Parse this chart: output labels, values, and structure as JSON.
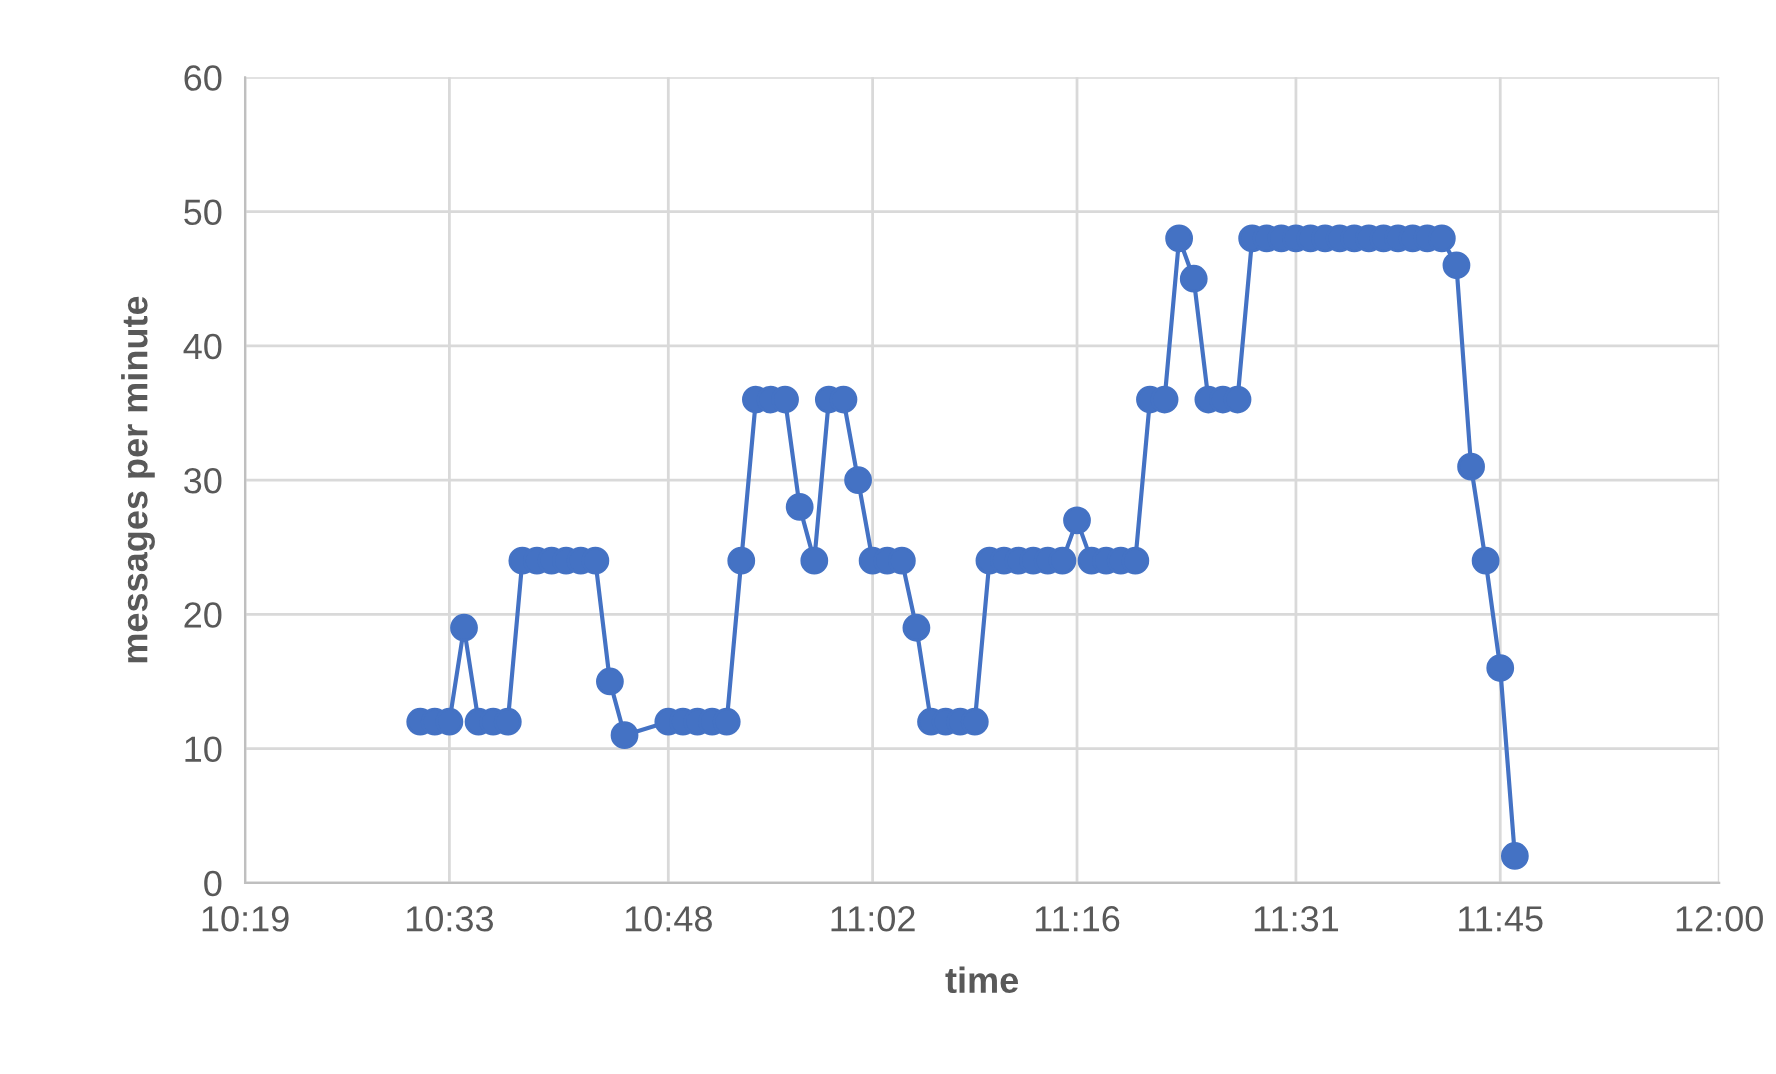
{
  "chart_data": {
    "type": "line",
    "xlabel": "time",
    "ylabel": "messages per minute",
    "xlim": [
      10.3167,
      12.0
    ],
    "xticks": [
      {
        "value": 10.3167,
        "label": "10:19"
      },
      {
        "value": 10.55,
        "label": "10:33"
      },
      {
        "value": 10.8,
        "label": "10:48"
      },
      {
        "value": 11.0333,
        "label": "11:02"
      },
      {
        "value": 11.2667,
        "label": "11:16"
      },
      {
        "value": 11.5167,
        "label": "11:31"
      },
      {
        "value": 11.75,
        "label": "11:45"
      },
      {
        "value": 12.0,
        "label": "12:00"
      }
    ],
    "ylim": [
      0,
      60
    ],
    "yticks": [
      0,
      10,
      20,
      30,
      40,
      50,
      60
    ],
    "grid": true,
    "marker": "circle",
    "line_style": "solid",
    "series": [
      {
        "color": "#4472c4",
        "x": [
          10.5167,
          10.5333,
          10.55,
          10.5667,
          10.5833,
          10.6,
          10.6167,
          10.6333,
          10.65,
          10.6667,
          10.6833,
          10.7,
          10.7167,
          10.7333,
          10.75,
          10.8,
          10.8167,
          10.8333,
          10.85,
          10.8667,
          10.8833,
          10.9,
          10.9167,
          10.9333,
          10.95,
          10.9667,
          10.9833,
          11.0,
          11.0167,
          11.0333,
          11.05,
          11.0667,
          11.0833,
          11.1,
          11.1167,
          11.1333,
          11.15,
          11.1667,
          11.1833,
          11.2,
          11.2167,
          11.2333,
          11.25,
          11.2667,
          11.2833,
          11.3,
          11.3167,
          11.3333,
          11.35,
          11.3667,
          11.3833,
          11.4,
          11.4167,
          11.4333,
          11.45,
          11.4667,
          11.4833,
          11.5,
          11.5167,
          11.5333,
          11.55,
          11.5667,
          11.5833,
          11.6,
          11.6167,
          11.6333,
          11.65,
          11.6667,
          11.6833,
          11.7,
          11.7167,
          11.7333,
          11.75,
          11.7667
        ],
        "values": [
          12,
          12,
          12,
          19,
          12,
          12,
          12,
          24,
          24,
          24,
          24,
          24,
          24,
          15,
          11,
          12,
          12,
          12,
          12,
          12,
          24,
          36,
          36,
          36,
          28,
          24,
          36,
          36,
          30,
          24,
          24,
          24,
          19,
          12,
          12,
          12,
          12,
          24,
          24,
          24,
          24,
          24,
          24,
          27,
          24,
          24,
          24,
          24,
          36,
          36,
          48,
          45,
          36,
          36,
          36,
          48,
          48,
          48,
          48,
          48,
          48,
          48,
          48,
          48,
          48,
          48,
          48,
          48,
          48,
          46,
          31,
          24,
          16,
          2
        ]
      }
    ]
  }
}
